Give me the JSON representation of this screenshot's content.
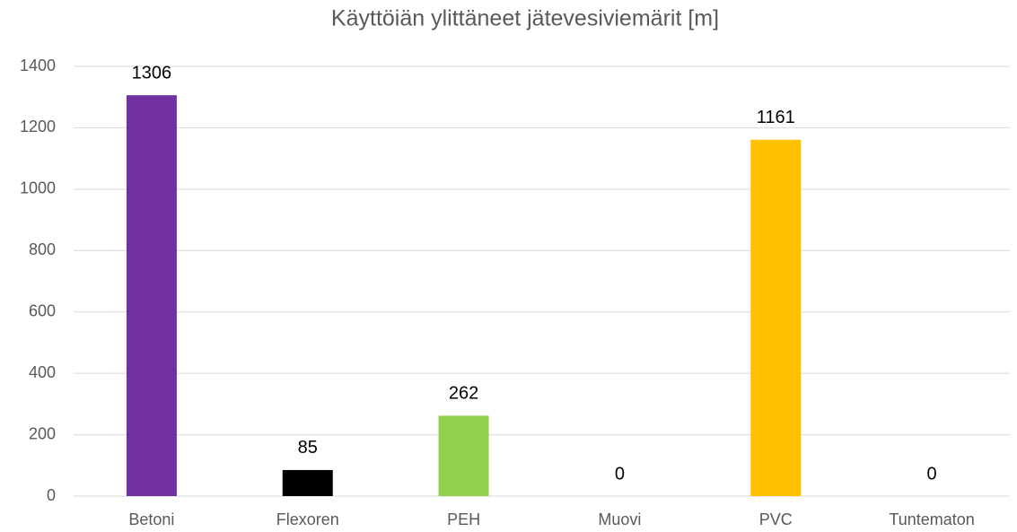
{
  "chart_data": {
    "type": "bar",
    "title": "Käyttöiän ylittäneet jätevesiviemärit [m]",
    "categories": [
      "Betoni",
      "Flexoren",
      "PEH",
      "Muovi",
      "PVC",
      "Tuntematon"
    ],
    "values": [
      1306,
      85,
      262,
      0,
      1161,
      0
    ],
    "colors": [
      "#7030a0",
      "#000000",
      "#92d050",
      "#4472c4",
      "#ffc000",
      "#a5a5a5"
    ],
    "ylim": [
      0,
      1400
    ],
    "yticks": [
      0,
      200,
      400,
      600,
      800,
      1000,
      1200,
      1400
    ],
    "grid": true
  }
}
